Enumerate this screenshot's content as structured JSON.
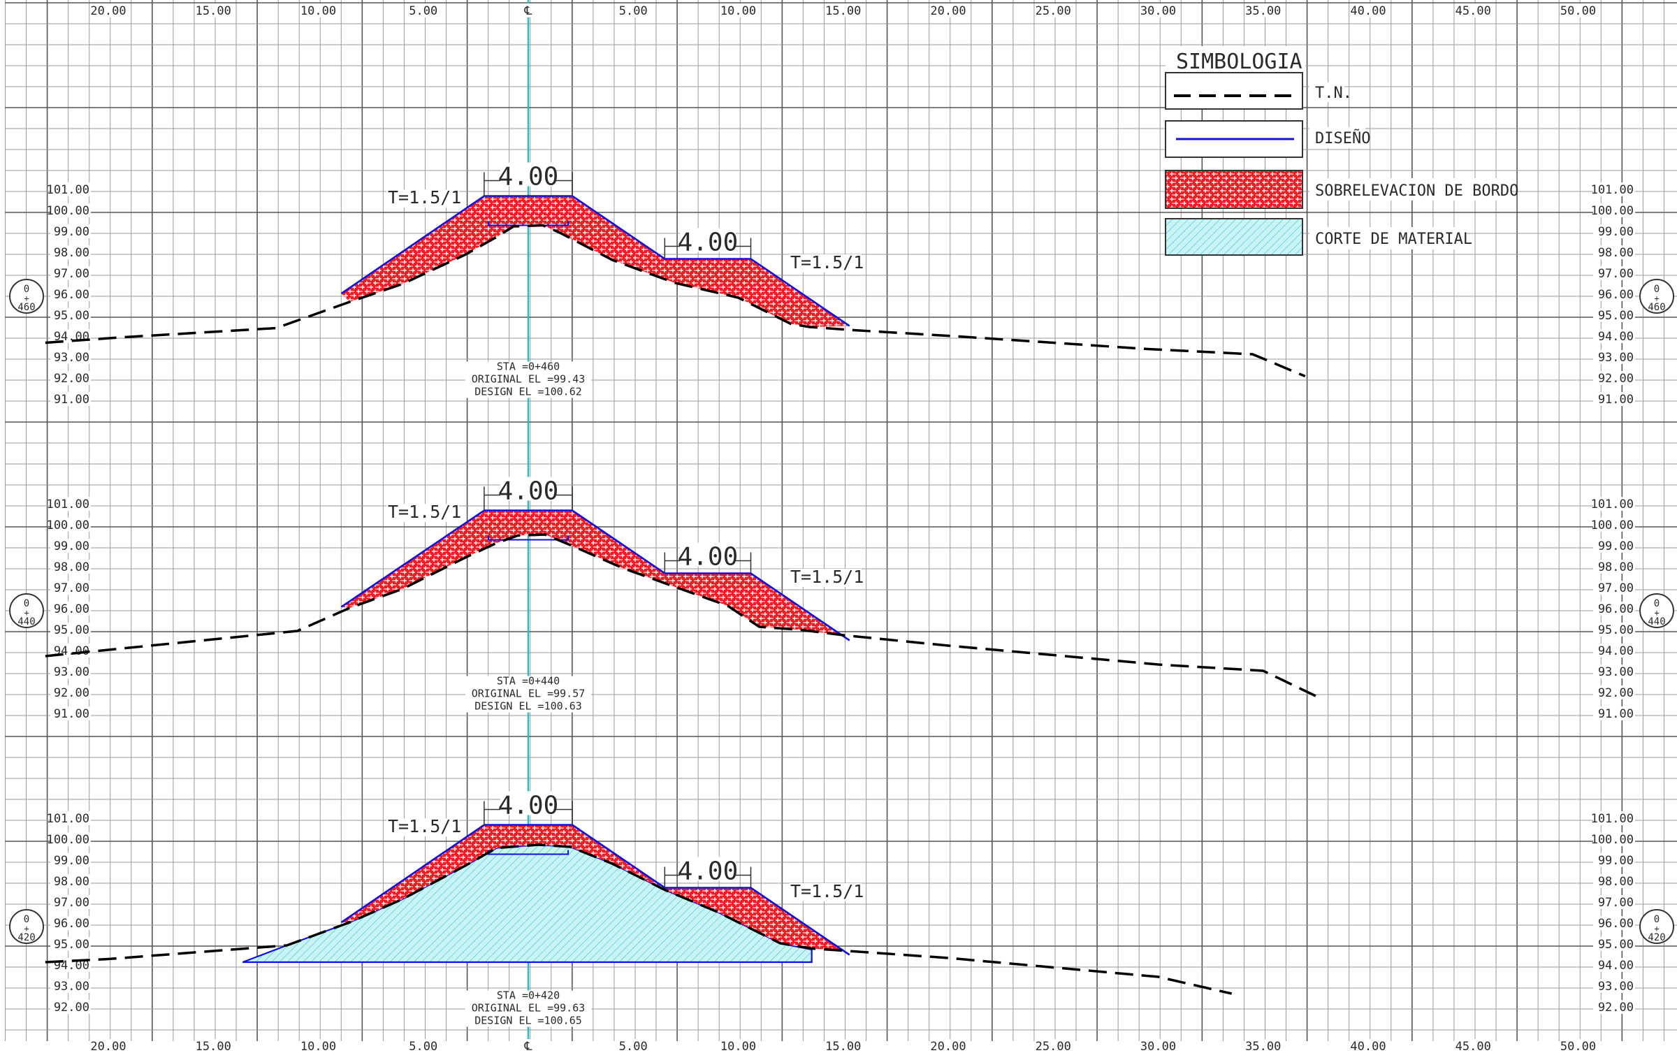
{
  "offset_labels": {
    "left": [
      "20.00",
      "15.00",
      "10.00",
      "5.00"
    ],
    "centerline": "℄",
    "right": [
      "5.00",
      "10.00",
      "15.00",
      "20.00",
      "25.00",
      "30.00",
      "35.00",
      "40.00",
      "45.00",
      "50.00"
    ]
  },
  "elevation_labels": [
    "101.00",
    "100.00",
    "99.00",
    "98.00",
    "97.00",
    "96.00",
    "95.00",
    "94.00",
    "93.00",
    "92.00",
    "91.00"
  ],
  "elevation_labels_bottom": [
    "101.00",
    "100.00",
    "99.00",
    "98.00",
    "97.00",
    "96.00",
    "95.00",
    "94.00",
    "93.00",
    "92.00"
  ],
  "legend": {
    "title": "SIMBOLOGIA",
    "items": [
      {
        "label": "T.N.",
        "style": "dashed-black"
      },
      {
        "label": "DISEÑO",
        "style": "blue-line"
      },
      {
        "label": "SOBRELEVACION DE BORDO",
        "style": "red-hatch"
      },
      {
        "label": "CORTE DE MATERIAL",
        "style": "cyan-hatch"
      }
    ]
  },
  "colors": {
    "grid_minor": "#9a9a9a",
    "grid_major": "#555555",
    "centerline": "#2fb8c8",
    "design": "#1010dd",
    "fill_red": "#ee1c24",
    "fill_cyan": "#c8f4f6",
    "terrain": "#000000"
  },
  "sections": [
    {
      "station_badge": [
        "0",
        "+",
        "460"
      ],
      "crest_width": "4.00",
      "bench_width": "4.00",
      "slope_left": "T=1.5/1",
      "slope_right": "T=1.5/1",
      "sta_line": "STA =0+460",
      "orig_line": "ORIGINAL EL =99.43",
      "design_line": "DESIGN EL =100.62",
      "has_cut": false
    },
    {
      "station_badge": [
        "0",
        "+",
        "440"
      ],
      "crest_width": "4.00",
      "bench_width": "4.00",
      "slope_left": "T=1.5/1",
      "slope_right": "T=1.5/1",
      "sta_line": "STA =0+440",
      "orig_line": "ORIGINAL EL =99.57",
      "design_line": "DESIGN EL =100.63",
      "has_cut": false
    },
    {
      "station_badge": [
        "0",
        "+",
        "420"
      ],
      "crest_width": "4.00",
      "bench_width": "4.00",
      "slope_left": "T=1.5/1",
      "slope_right": "T=1.5/1",
      "sta_line": "STA =0+420",
      "orig_line": "ORIGINAL EL =99.63",
      "design_line": "DESIGN EL =100.65",
      "has_cut": true
    }
  ]
}
